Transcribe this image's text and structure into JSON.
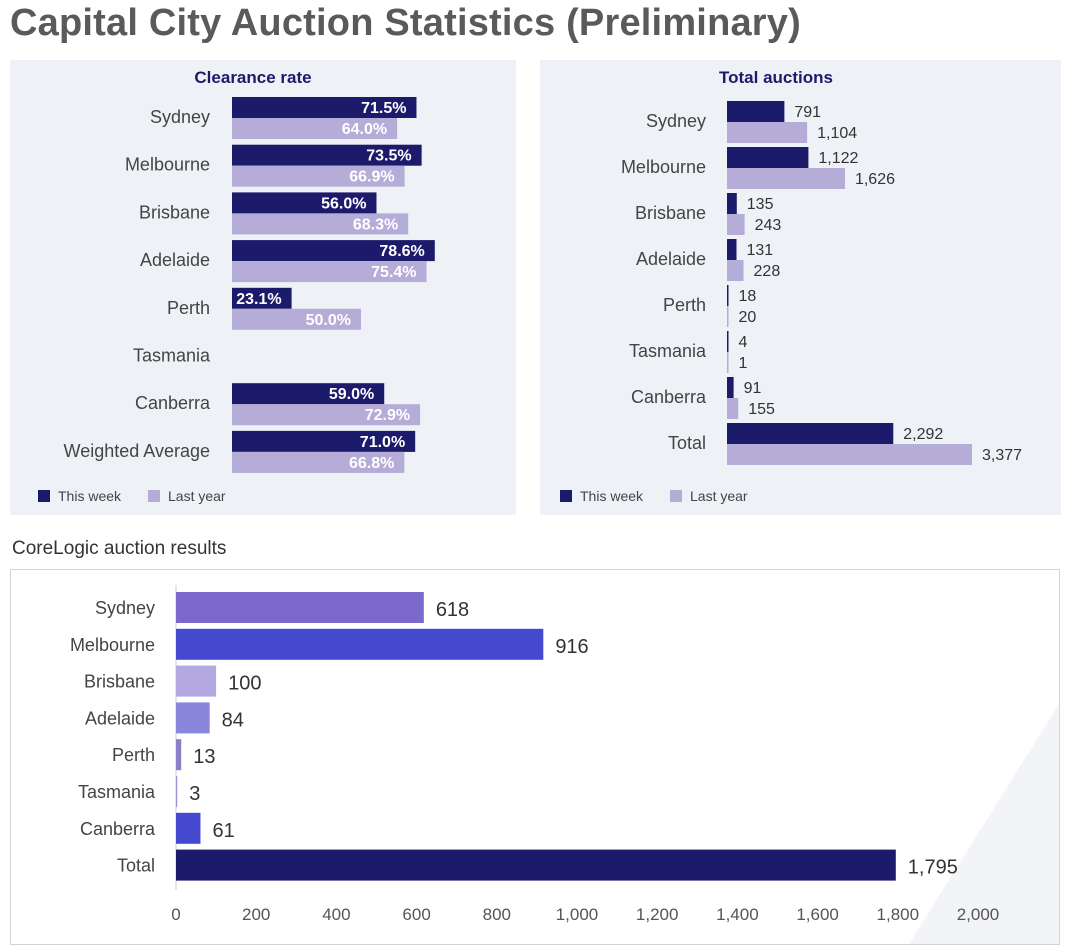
{
  "page": {
    "title": "Capital City Auction Statistics (Preliminary)"
  },
  "results_section": {
    "title": "CoreLogic auction results"
  },
  "colors": {
    "this_week": "#1c1a6b",
    "last_year": "#b6acd8",
    "panel_bg": "#eef1f6",
    "results_bars": [
      "#7b68cc",
      "#4449cf",
      "#b3a8e2",
      "#8a86dc",
      "#8c7fc8",
      "#9a94dc",
      "#4449cf",
      "#1c1a6b"
    ]
  },
  "chart_data": [
    {
      "id": "clearance-rate",
      "type": "bar",
      "orientation": "horizontal",
      "title": "Clearance rate",
      "categories": [
        "Sydney",
        "Melbourne",
        "Brisbane",
        "Adelaide",
        "Perth",
        "Tasmania",
        "Canberra",
        "Weighted Average"
      ],
      "series": [
        {
          "name": "This week",
          "values": [
            71.5,
            73.5,
            56.0,
            78.6,
            23.1,
            null,
            59.0,
            71.0
          ],
          "labels": [
            "71.5%",
            "73.5%",
            "56.0%",
            "78.6%",
            "23.1%",
            "",
            "59.0%",
            "71.0%"
          ]
        },
        {
          "name": "Last year",
          "values": [
            64.0,
            66.9,
            68.3,
            75.4,
            50.0,
            null,
            72.9,
            66.8
          ],
          "labels": [
            "64.0%",
            "66.9%",
            "68.3%",
            "75.4%",
            "50.0%",
            "",
            "72.9%",
            "66.8%"
          ]
        }
      ],
      "xlim": [
        0,
        100
      ],
      "legend": "bottom-left",
      "grid": false
    },
    {
      "id": "total-auctions",
      "type": "bar",
      "orientation": "horizontal",
      "title": "Total auctions",
      "categories": [
        "Sydney",
        "Melbourne",
        "Brisbane",
        "Adelaide",
        "Perth",
        "Tasmania",
        "Canberra",
        "Total"
      ],
      "series": [
        {
          "name": "This week",
          "values": [
            791,
            1122,
            135,
            131,
            18,
            4,
            91,
            2292
          ],
          "labels": [
            "791",
            "1,122",
            "135",
            "131",
            "18",
            "4",
            "91",
            "2,292"
          ]
        },
        {
          "name": "Last year",
          "values": [
            1104,
            1626,
            243,
            228,
            20,
            1,
            155,
            3377
          ],
          "labels": [
            "1,104",
            "1,626",
            "243",
            "228",
            "20",
            "1",
            "155",
            "3,377"
          ]
        }
      ],
      "xlim": [
        0,
        4000
      ],
      "legend": "bottom-left",
      "grid": false
    },
    {
      "id": "corelogic-results",
      "type": "bar",
      "orientation": "horizontal",
      "title": "",
      "categories": [
        "Sydney",
        "Melbourne",
        "Brisbane",
        "Adelaide",
        "Perth",
        "Tasmania",
        "Canberra",
        "Total"
      ],
      "values": [
        618,
        916,
        100,
        84,
        13,
        3,
        61,
        1795
      ],
      "labels": [
        "618",
        "916",
        "100",
        "84",
        "13",
        "3",
        "61",
        "1,795"
      ],
      "xlim": [
        0,
        2000
      ],
      "xticks": [
        0,
        200,
        400,
        600,
        800,
        1000,
        1200,
        1400,
        1600,
        1800,
        2000
      ],
      "xtick_labels": [
        "0",
        "200",
        "400",
        "600",
        "800",
        "1,000",
        "1,200",
        "1,400",
        "1,600",
        "1,800",
        "2,000"
      ],
      "legend": "none",
      "grid": false
    }
  ]
}
